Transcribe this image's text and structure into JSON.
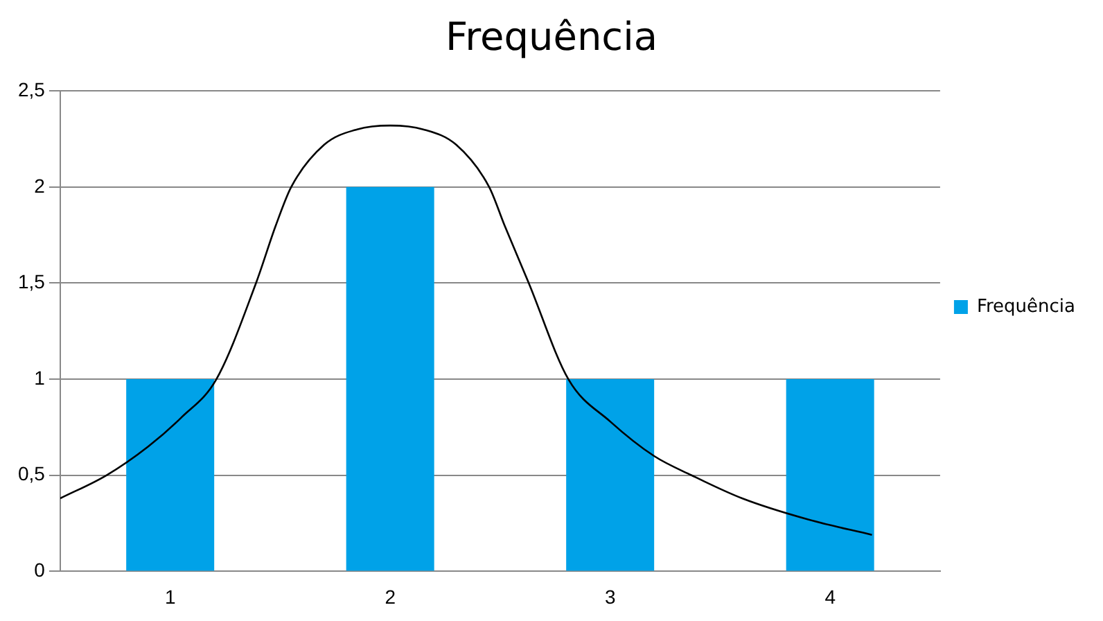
{
  "chart_data": {
    "type": "bar",
    "title": "Frequência",
    "legend": "right",
    "grid": "y",
    "xlim": [
      0.5,
      4.5
    ],
    "xticks": [
      1,
      2,
      3,
      4
    ],
    "ylim": [
      0,
      2.5
    ],
    "yticks": [
      0,
      {
        "value": 0.5,
        "label": "0,5"
      },
      1,
      {
        "value": 1.5,
        "label": "1,5"
      },
      2,
      {
        "value": 2.5,
        "label": "2,5"
      }
    ],
    "series": [
      {
        "name": "Frequência",
        "color": "#00a2e8",
        "x": [
          1,
          2,
          3,
          4
        ],
        "values": [
          1,
          2,
          1,
          1
        ]
      },
      {
        "type": "line",
        "color": "#000000",
        "marker": "none",
        "x": [
          0.5,
          0.71,
          0.9,
          1.05,
          1.21,
          1.39,
          1.48,
          1.55,
          1.7,
          1.85,
          2.0,
          2.15,
          2.3,
          2.45,
          2.52,
          2.63,
          2.81,
          3.0,
          3.2,
          3.37,
          3.6,
          3.9,
          4.19
        ],
        "values": [
          0.38,
          0.5,
          0.65,
          0.8,
          1.0,
          1.5,
          1.8,
          2.0,
          2.22,
          2.3,
          2.32,
          2.3,
          2.22,
          2.0,
          1.8,
          1.5,
          1.0,
          0.78,
          0.6,
          0.5,
          0.38,
          0.27,
          0.19
        ]
      }
    ]
  }
}
